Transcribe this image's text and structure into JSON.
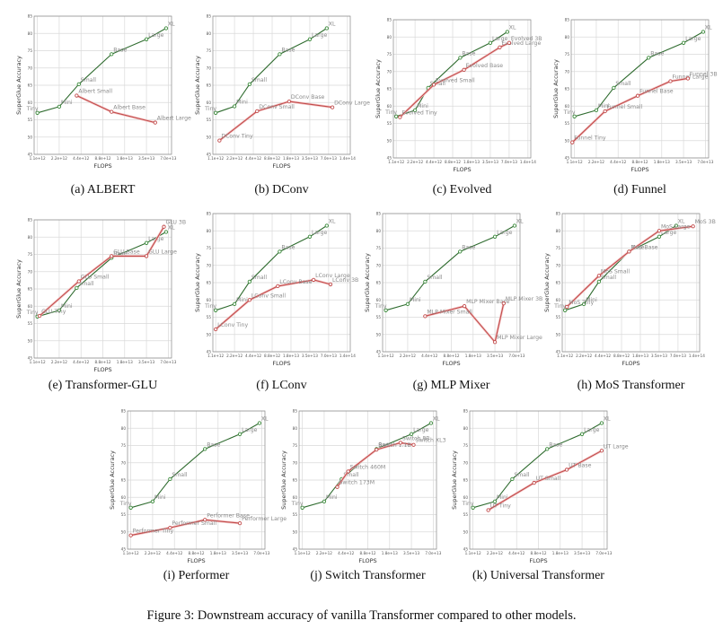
{
  "figure_caption": "Figure 3: Downstream accuracy of vanilla Transformer compared to other models.",
  "colors": {
    "baseline": "#2e6b2e",
    "baseline_marker": "#3a8a3a",
    "variant": "#c24a4a",
    "grid": "#d9d9d9",
    "axis": "#888888"
  },
  "chart_data": [
    {
      "id": "a",
      "caption": "(a) ALBERT",
      "type": "line",
      "xlabel": "FLOPS",
      "ylabel": "SuperGlue Accuracy",
      "ylim": [
        45,
        85
      ],
      "yticks": [
        45,
        50,
        55,
        60,
        65,
        70,
        75,
        80,
        85
      ],
      "xticks": [
        "1.1e+12",
        "2.2e+12",
        "4.4e+12",
        "8.8e+12",
        "1.8e+13",
        "3.5e+13",
        "7.0e+13"
      ],
      "grid": true,
      "series": [
        {
          "name": "Transformer",
          "labels": [
            "Tiny",
            "Mini",
            "Small",
            "Base",
            "Large",
            "XL"
          ],
          "x": [
            0,
            1,
            1.9,
            3.4,
            5,
            5.9
          ],
          "y": [
            57.0,
            58.8,
            65.3,
            74.0,
            78.3,
            81.5
          ]
        },
        {
          "name": "ALBERT",
          "labels": [
            "Albert Small",
            "Albert Base",
            "Albert Large"
          ],
          "x": [
            1.8,
            3.4,
            5.4
          ],
          "y": [
            62.0,
            57.3,
            54.2
          ]
        }
      ]
    },
    {
      "id": "b",
      "caption": "(b) DConv",
      "type": "line",
      "xlabel": "FLOPS",
      "ylabel": "SuperGlue Accuracy",
      "ylim": [
        45,
        85
      ],
      "yticks": [
        45,
        50,
        55,
        60,
        65,
        70,
        75,
        80,
        85
      ],
      "xticks": [
        "1.1e+12",
        "2.2e+12",
        "4.4e+12",
        "8.8e+12",
        "1.8e+13",
        "3.5e+13",
        "7.0e+13",
        "1.4e+14"
      ],
      "grid": true,
      "series": [
        {
          "name": "Transformer",
          "labels": [
            "Tiny",
            "Mini",
            "Small",
            "Base",
            "Large",
            "XL"
          ],
          "x": [
            0,
            1,
            1.8,
            3.4,
            5,
            5.9
          ],
          "y": [
            57.0,
            58.9,
            65.3,
            74.0,
            78.3,
            81.5
          ]
        },
        {
          "name": "DConv",
          "labels": [
            "DConv Tiny",
            "DConv Small",
            "DConv Base",
            "DConv Large"
          ],
          "x": [
            0.2,
            2.2,
            3.9,
            6.2
          ],
          "y": [
            49.0,
            57.5,
            60.3,
            58.6
          ]
        }
      ]
    },
    {
      "id": "c",
      "caption": "(c) Evolved",
      "type": "line",
      "xlabel": "FLOPS",
      "ylabel": "SuperGlue Accuracy",
      "ylim": [
        45,
        85
      ],
      "yticks": [
        45,
        50,
        55,
        60,
        65,
        70,
        75,
        80,
        85
      ],
      "xticks": [
        "1.1e+12",
        "2.2e+12",
        "4.4e+12",
        "8.8e+12",
        "1.8e+13",
        "3.5e+13",
        "7.0e+13",
        "1.4e+14"
      ],
      "grid": true,
      "series": [
        {
          "name": "Transformer",
          "labels": [
            "Tiny",
            "Mini",
            "Small",
            "Base",
            "Large",
            "XL"
          ],
          "x": [
            0,
            1,
            1.7,
            3.4,
            5,
            5.9
          ],
          "y": [
            57.0,
            58.8,
            65.3,
            74.0,
            78.3,
            81.5
          ]
        },
        {
          "name": "Evolved",
          "labels": [
            "Evolved Tiny",
            "Evolved Small",
            "Evolved Base",
            "Evolved Large",
            "Evolved 3B"
          ],
          "x": [
            0.2,
            2.0,
            3.6,
            5.5,
            6.0
          ],
          "y": [
            56.8,
            66.2,
            70.5,
            77.0,
            78.3
          ]
        }
      ]
    },
    {
      "id": "d",
      "caption": "(d) Funnel",
      "type": "line",
      "xlabel": "FLOPS",
      "ylabel": "SuperGlue Accuracy",
      "ylim": [
        45,
        85
      ],
      "yticks": [
        45,
        50,
        55,
        60,
        65,
        70,
        75,
        80,
        85
      ],
      "xticks": [
        "1.1e+12",
        "2.2e+12",
        "4.4e+12",
        "8.8e+12",
        "1.8e+13",
        "3.5e+13",
        "7.0e+13"
      ],
      "grid": true,
      "series": [
        {
          "name": "Transformer",
          "labels": [
            "Tiny",
            "Mini",
            "Small",
            "Base",
            "Large",
            "XL"
          ],
          "x": [
            0,
            1,
            1.8,
            3.4,
            5,
            5.9
          ],
          "y": [
            57.0,
            58.8,
            65.3,
            74.0,
            78.3,
            81.5
          ]
        },
        {
          "name": "Funnel",
          "labels": [
            "Funnel Tiny",
            "Funnel Small",
            "Funnel Base",
            "Funnel Large",
            "Funnel 3B"
          ],
          "x": [
            -0.1,
            1.4,
            2.9,
            4.4,
            5.2
          ],
          "y": [
            49.5,
            58.5,
            63.0,
            67.2,
            68.0
          ]
        }
      ]
    },
    {
      "id": "e",
      "caption": "(e) Transformer-GLU",
      "type": "line",
      "xlabel": "FLOPS",
      "ylabel": "SuperGlue Accuracy",
      "ylim": [
        45,
        85
      ],
      "yticks": [
        45,
        50,
        55,
        60,
        65,
        70,
        75,
        80,
        85
      ],
      "xticks": [
        "1.1e+12",
        "2.2e+12",
        "4.4e+12",
        "8.8e+12",
        "1.8e+13",
        "3.5e+13",
        "7.0e+13"
      ],
      "grid": true,
      "series": [
        {
          "name": "Transformer",
          "labels": [
            "Tiny",
            "Mini",
            "Small",
            "Base",
            "Large",
            "XL"
          ],
          "x": [
            0,
            1,
            1.8,
            3.4,
            5,
            5.9
          ],
          "y": [
            57.0,
            58.8,
            65.3,
            74.0,
            78.3,
            81.5
          ]
        },
        {
          "name": "GLU",
          "labels": [
            "GLU Tiny",
            "GLU Small",
            "GLU Base",
            "GLU Large",
            "GLU 3B"
          ],
          "x": [
            0.1,
            1.9,
            3.4,
            5.0,
            5.8
          ],
          "y": [
            57.2,
            67.2,
            74.5,
            74.5,
            83.0
          ]
        }
      ]
    },
    {
      "id": "f",
      "caption": "(f) LConv",
      "type": "line",
      "xlabel": "FLOPS",
      "ylabel": "SuperGlue Accuracy",
      "ylim": [
        45,
        85
      ],
      "yticks": [
        45,
        50,
        55,
        60,
        65,
        70,
        75,
        80,
        85
      ],
      "xticks": [
        "1.1e+12",
        "2.2e+12",
        "4.4e+12",
        "8.8e+12",
        "1.8e+13",
        "3.5e+13",
        "7.0e+13",
        "1.4e+14"
      ],
      "grid": true,
      "series": [
        {
          "name": "Transformer",
          "labels": [
            "Tiny",
            "Mini",
            "Small",
            "Base",
            "Large",
            "XL"
          ],
          "x": [
            0,
            1,
            1.8,
            3.4,
            5,
            5.9
          ],
          "y": [
            57.0,
            58.8,
            65.3,
            74.0,
            78.3,
            81.5
          ]
        },
        {
          "name": "LConv",
          "labels": [
            "LConv Tiny",
            "LConv Small",
            "LConv Base",
            "LConv Large",
            "LConv 3B"
          ],
          "x": [
            0,
            1.8,
            3.3,
            5.2,
            6.1
          ],
          "y": [
            51.5,
            60.0,
            64.0,
            65.8,
            64.5
          ]
        }
      ]
    },
    {
      "id": "g",
      "caption": "(g) MLP Mixer",
      "type": "line",
      "xlabel": "FLOPS",
      "ylabel": "SuperGlue Accuracy",
      "ylim": [
        45,
        85
      ],
      "yticks": [
        45,
        50,
        55,
        60,
        65,
        70,
        75,
        80,
        85
      ],
      "xticks": [
        "1.1e+12",
        "2.2e+12",
        "4.4e+12",
        "8.8e+12",
        "1.8e+13",
        "3.5e+13",
        "7.0e+13"
      ],
      "grid": true,
      "series": [
        {
          "name": "Transformer",
          "labels": [
            "Tiny",
            "Mini",
            "Small",
            "Base",
            "Large",
            "XL"
          ],
          "x": [
            0,
            1,
            1.8,
            3.4,
            5,
            5.9
          ],
          "y": [
            57.0,
            58.8,
            65.3,
            74.0,
            78.3,
            81.5
          ]
        },
        {
          "name": "MLP Mixer",
          "labels": [
            "MLP Mixer Small",
            "MLP Mixer Base",
            "MLP Mixer Large",
            "MLP Mixer 3B"
          ],
          "x": [
            1.8,
            3.6,
            5.0,
            5.4
          ],
          "y": [
            55.3,
            58.2,
            47.8,
            59.0
          ]
        }
      ]
    },
    {
      "id": "h",
      "caption": "(h) MoS Transformer",
      "type": "line",
      "xlabel": "FLOPS",
      "ylabel": "SuperGlue Accuracy",
      "ylim": [
        45,
        85
      ],
      "yticks": [
        45,
        50,
        55,
        60,
        65,
        70,
        75,
        80,
        85
      ],
      "xticks": [
        "1.1e+12",
        "2.2e+12",
        "4.4e+12",
        "8.8e+12",
        "1.8e+13",
        "3.5e+13",
        "7.0e+13",
        "1.4e+14"
      ],
      "grid": true,
      "series": [
        {
          "name": "Transformer",
          "labels": [
            "Tiny",
            "Mini",
            "Small",
            "Base",
            "Large",
            "XL"
          ],
          "x": [
            0,
            1,
            1.8,
            3.4,
            5,
            5.9
          ],
          "y": [
            57.0,
            58.8,
            65.3,
            74.0,
            78.3,
            81.5
          ]
        },
        {
          "name": "MoS",
          "labels": [
            "MoS Tiny",
            "MoS Small",
            "MoS Base",
            "MoS Large",
            "MoS 3B"
          ],
          "x": [
            0.1,
            1.8,
            3.4,
            5.0,
            6.8
          ],
          "y": [
            58.0,
            67.0,
            74.0,
            80.0,
            81.3
          ]
        }
      ]
    },
    {
      "id": "i",
      "caption": "(i) Performer",
      "type": "line",
      "xlabel": "FLOPS",
      "ylabel": "SuperGlue Accuracy",
      "ylim": [
        45,
        85
      ],
      "yticks": [
        45,
        50,
        55,
        60,
        65,
        70,
        75,
        80,
        85
      ],
      "xticks": [
        "1.1e+12",
        "2.2e+12",
        "4.4e+12",
        "8.8e+12",
        "1.8e+13",
        "3.5e+13",
        "7.0e+13"
      ],
      "grid": true,
      "series": [
        {
          "name": "Transformer",
          "labels": [
            "Tiny",
            "Mini",
            "Small",
            "Base",
            "Large",
            "XL"
          ],
          "x": [
            0,
            1,
            1.8,
            3.4,
            5,
            5.9
          ],
          "y": [
            57.0,
            58.8,
            65.3,
            74.0,
            78.3,
            81.5
          ]
        },
        {
          "name": "Performer",
          "labels": [
            "Performer Tiny",
            "Performer Small",
            "Performer Base",
            "Performer Large"
          ],
          "x": [
            0,
            1.8,
            3.4,
            5.0
          ],
          "y": [
            49.0,
            51.2,
            53.5,
            52.5
          ]
        }
      ]
    },
    {
      "id": "j",
      "caption": "(j) Switch Transformer",
      "type": "line",
      "xlabel": "FLOPS",
      "ylabel": "SuperGlue Accuracy",
      "ylim": [
        45,
        85
      ],
      "yticks": [
        45,
        50,
        55,
        60,
        65,
        70,
        75,
        80,
        85
      ],
      "xticks": [
        "1.1e+12",
        "2.2e+12",
        "4.4e+12",
        "8.8e+12",
        "1.8e+13",
        "3.5e+13",
        "7.0e+13"
      ],
      "grid": true,
      "series": [
        {
          "name": "Transformer",
          "labels": [
            "Tiny",
            "Mini",
            "Small",
            "Base",
            "Large",
            "XL"
          ],
          "x": [
            0,
            1,
            1.8,
            3.4,
            5,
            5.9
          ],
          "y": [
            57.0,
            58.8,
            65.3,
            74.0,
            78.3,
            81.5
          ]
        },
        {
          "name": "Switch",
          "labels": [
            "Switch 173M",
            "Switch 460M",
            "Switch 1.1B",
            "Switch 8B",
            "Switch XL3"
          ],
          "x": [
            1.6,
            2.1,
            3.4,
            4.5,
            5.1
          ],
          "y": [
            63.0,
            67.5,
            73.8,
            75.8,
            75.2
          ]
        }
      ]
    },
    {
      "id": "k",
      "caption": "(k) Universal Transformer",
      "type": "line",
      "xlabel": "FLOPS",
      "ylabel": "SuperGlue Accuracy",
      "ylim": [
        45,
        85
      ],
      "yticks": [
        45,
        50,
        55,
        60,
        65,
        70,
        75,
        80,
        85
      ],
      "xticks": [
        "1.1e+12",
        "2.2e+12",
        "4.4e+12",
        "8.8e+12",
        "1.8e+13",
        "3.5e+13",
        "7.0e+13"
      ],
      "grid": true,
      "series": [
        {
          "name": "Transformer",
          "labels": [
            "Tiny",
            "Mini",
            "Small",
            "Base",
            "Large",
            "XL"
          ],
          "x": [
            0,
            1,
            1.8,
            3.4,
            5,
            5.9
          ],
          "y": [
            57.0,
            58.8,
            65.3,
            74.0,
            78.3,
            81.5
          ]
        },
        {
          "name": "Universal Transformer",
          "labels": [
            "UT Tiny",
            "UT Small",
            "UT Base",
            "UT Large"
          ],
          "x": [
            0.7,
            2.8,
            4.3,
            5.9
          ],
          "y": [
            56.3,
            64.2,
            68.0,
            73.5
          ]
        }
      ]
    }
  ]
}
